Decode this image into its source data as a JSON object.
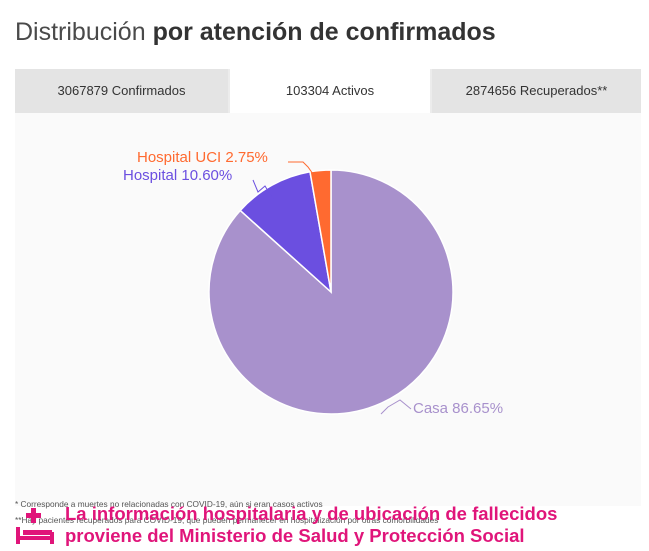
{
  "title": {
    "regular": "Distribución",
    "bold": "por atención de confirmados"
  },
  "tabs": [
    {
      "label": "3067879 Confirmados",
      "active": false
    },
    {
      "label": "103304 Activos",
      "active": true
    },
    {
      "label": "2874656 Recuperados**",
      "active": false
    }
  ],
  "chart_data": {
    "type": "pie",
    "title": "",
    "slices": [
      {
        "label": "Hospital UCI 2.75%",
        "value": 2.75,
        "color": "#ff6a30"
      },
      {
        "label": "Hospital 10.60%",
        "value": 10.6,
        "color": "#6b4fe0"
      },
      {
        "label": "Casa 86.65%",
        "value": 86.65,
        "color": "#a891cc"
      }
    ],
    "label_colors": [
      "#ff6a30",
      "#6b4fe0",
      "#a891cc"
    ]
  },
  "footnotes": [
    "* Corresponde a muertes no relacionadas con COVID-19, aún si eran casos activos",
    "**Hay pacientes recuperados para COVID-19, que pueden permanecer en hospitalización por otras comorbilidades"
  ],
  "source": {
    "line1": "La información hospitalaria y de ubicación de fallecidos",
    "line2": "proviene del Ministerio de Salud y Protección Social",
    "color": "#e0157a",
    "icon": "hospital-bed-icon"
  }
}
